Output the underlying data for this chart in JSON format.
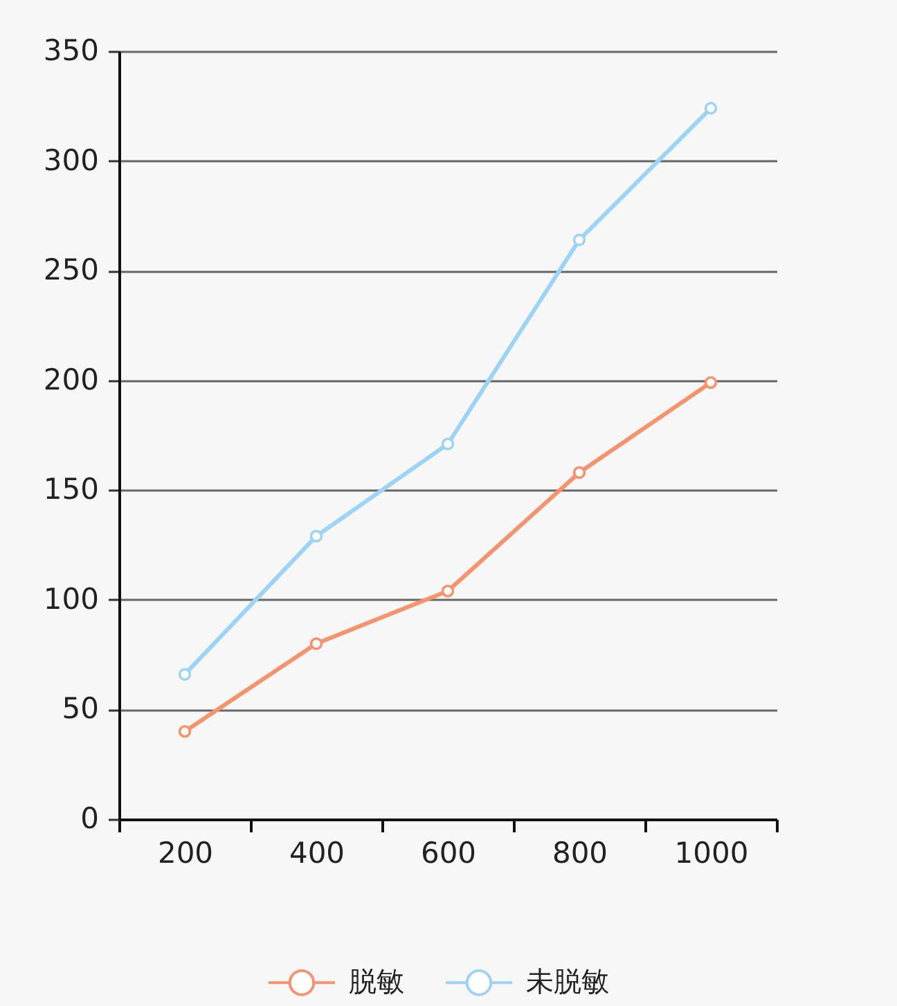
{
  "chart_data": {
    "type": "line",
    "categories": [
      "200",
      "400",
      "600",
      "800",
      "1000"
    ],
    "series": [
      {
        "name": "脱敏",
        "color": "#f5936f",
        "values": [
          40,
          80,
          104,
          158,
          199
        ]
      },
      {
        "name": "未脱敏",
        "color": "#9dd3f4",
        "values": [
          66,
          129,
          171,
          264,
          324
        ]
      }
    ],
    "ylim": [
      0,
      350
    ],
    "yticks": [
      0,
      50,
      100,
      150,
      200,
      250,
      300,
      350
    ],
    "grid": "y",
    "legend": "bottom",
    "marker": "circle",
    "line_style": "solid"
  }
}
